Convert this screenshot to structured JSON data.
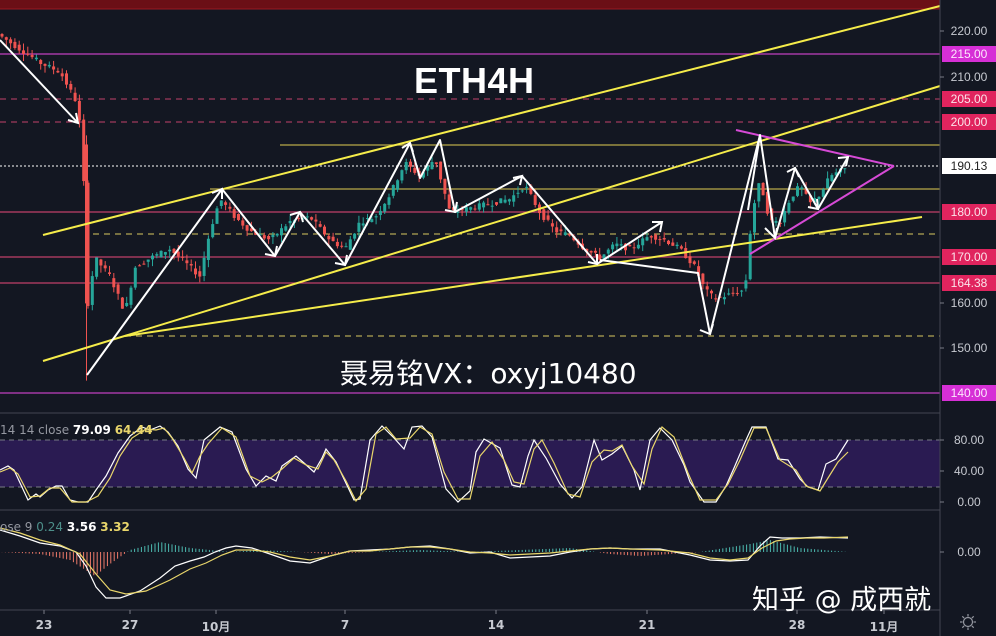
{
  "chart_data": {
    "type": "candlestick",
    "title": "ETH4H",
    "symbol": "ETH",
    "timeframe": "4H",
    "price_axis": {
      "ticks": [
        220.0,
        210.0,
        160.0,
        150.0
      ],
      "labels": [
        "220.00",
        "210.00",
        "160.00",
        "150.00"
      ],
      "highlighted_levels": [
        {
          "label": "215.00",
          "value": 215.0,
          "color": "#d62fd6"
        },
        {
          "label": "205.00",
          "value": 205.0,
          "color": "#e0245e"
        },
        {
          "label": "200.00",
          "value": 200.0,
          "color": "#e0245e"
        },
        {
          "label": "180.00",
          "value": 180.0,
          "color": "#e0245e"
        },
        {
          "label": "170.00",
          "value": 170.0,
          "color": "#e0245e"
        },
        {
          "label": "164.38",
          "value": 164.38,
          "color": "#e0245e"
        },
        {
          "label": "140.00",
          "value": 140.0,
          "color": "#d62fd6"
        }
      ],
      "current_price": "190.13",
      "ylim": [
        138,
        226
      ]
    },
    "time_axis": {
      "labels": [
        "23",
        "27",
        "10月",
        "7",
        "14",
        "21",
        "28",
        "11月"
      ]
    },
    "horizontal_lines": [
      {
        "value": 215,
        "style": "solid",
        "color": "#c040c0"
      },
      {
        "value": 205,
        "style": "dashed",
        "color": "#c0406a"
      },
      {
        "value": 200,
        "style": "dashed",
        "color": "#c0406a"
      },
      {
        "value": 194.5,
        "style": "solid",
        "color": "#b8a84a"
      },
      {
        "value": 190.13,
        "style": "dotted",
        "color": "#ffffff"
      },
      {
        "value": 185,
        "style": "solid",
        "color": "#b8a84a"
      },
      {
        "value": 180,
        "style": "solid",
        "color": "#c0406a"
      },
      {
        "value": 175,
        "style": "dashed",
        "color": "#d8c860"
      },
      {
        "value": 170,
        "style": "solid",
        "color": "#c0406a"
      },
      {
        "value": 164.38,
        "style": "solid",
        "color": "#c0406a"
      },
      {
        "value": 152.5,
        "style": "dashed",
        "color": "#d8c860"
      },
      {
        "value": 140,
        "style": "solid",
        "color": "#c040c0"
      }
    ],
    "annotations": [
      "ETH4H",
      "聂易铭VX：oxyj10480"
    ],
    "indicators": [
      {
        "name": "Stoch RSI",
        "legend_prefix": "14 14 close",
        "values": [
          "79.09",
          "64.44"
        ],
        "axis_labels": [
          "80.00",
          "40.00",
          "0.00"
        ],
        "band": [
          20,
          80
        ]
      },
      {
        "name": "MACD",
        "legend_prefix": "ose 9",
        "values": [
          "0.24",
          "3.56",
          "3.32"
        ],
        "axis_labels": [
          "0.00",
          "0.00"
        ]
      }
    ]
  },
  "header": {
    "title": "ETH4H"
  },
  "watermark": {
    "contact": "聂易铭VX：oxyj10480",
    "source": "知乎 @ 成西就"
  },
  "price_labels": {
    "p220": "220.00",
    "p215": "215.00",
    "p210": "210.00",
    "p205": "205.00",
    "p200": "200.00",
    "p190": "190.13",
    "p180": "180.00",
    "p170": "170.00",
    "p164": "164.38",
    "p160": "160.00",
    "p150": "150.00",
    "p140": "140.00"
  },
  "stoch": {
    "legend_prefix": "14 14 close",
    "k": "79.09",
    "d": "64.44",
    "axis": {
      "a80": "80.00",
      "a40": "40.00",
      "a0": "0.00"
    }
  },
  "macd": {
    "legend_prefix": "ose 9",
    "hist": "0.24",
    "macd": "3.56",
    "signal": "3.32",
    "axis": {
      "a0": "0.00"
    }
  },
  "time_labels": [
    "23",
    "27",
    "10月",
    "7",
    "14",
    "21",
    "28",
    "11月"
  ],
  "colors": {
    "up": "#26a69a",
    "down": "#ef5350",
    "trend": "#f5ec4a",
    "pink": "#d64ad6",
    "level_red": "#e0245e",
    "bg": "#131722"
  }
}
